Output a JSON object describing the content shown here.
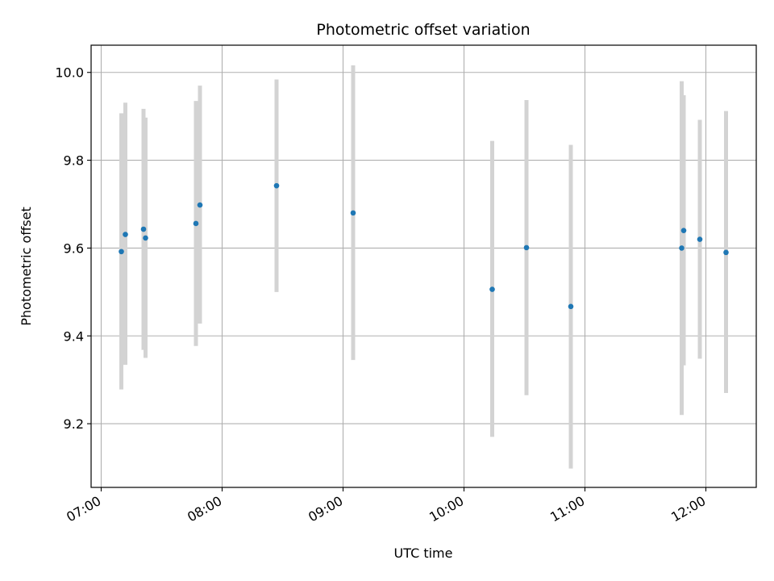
{
  "chart_data": {
    "type": "scatter",
    "title": "Photometric offset variation",
    "xlabel": "UTC time",
    "ylabel": "Photometric offset",
    "x_axis": {
      "kind": "time",
      "range": [
        "06:55",
        "12:25"
      ],
      "ticks": [
        "07:00",
        "08:00",
        "09:00",
        "10:00",
        "11:00",
        "12:00"
      ]
    },
    "y_axis": {
      "range": [
        9.055,
        10.062
      ],
      "ticks": [
        "9.2",
        "9.4",
        "9.6",
        "9.8",
        "10.0"
      ]
    },
    "grid": true,
    "colors": {
      "point": "#1f77b4",
      "errorbar": "#d3d3d3",
      "grid": "#b0b0b0"
    },
    "points": [
      {
        "time": "07:10",
        "value": 9.592,
        "lower": 9.278,
        "upper": 9.907
      },
      {
        "time": "07:12",
        "value": 9.631,
        "lower": 9.334,
        "upper": 9.931
      },
      {
        "time": "07:21",
        "value": 9.643,
        "lower": 9.368,
        "upper": 9.917
      },
      {
        "time": "07:22",
        "value": 9.623,
        "lower": 9.35,
        "upper": 9.897
      },
      {
        "time": "07:47",
        "value": 9.656,
        "lower": 9.377,
        "upper": 9.935
      },
      {
        "time": "07:49",
        "value": 9.698,
        "lower": 9.428,
        "upper": 9.97
      },
      {
        "time": "08:27",
        "value": 9.742,
        "lower": 9.5,
        "upper": 9.984
      },
      {
        "time": "09:05",
        "value": 9.68,
        "lower": 9.345,
        "upper": 10.016
      },
      {
        "time": "10:14",
        "value": 9.506,
        "lower": 9.17,
        "upper": 9.844
      },
      {
        "time": "10:31",
        "value": 9.601,
        "lower": 9.265,
        "upper": 9.937
      },
      {
        "time": "10:53",
        "value": 9.467,
        "lower": 9.098,
        "upper": 9.835
      },
      {
        "time": "11:48",
        "value": 9.6,
        "lower": 9.22,
        "upper": 9.98
      },
      {
        "time": "11:49",
        "value": 9.64,
        "lower": 9.333,
        "upper": 9.948
      },
      {
        "time": "11:57",
        "value": 9.62,
        "lower": 9.348,
        "upper": 9.892
      },
      {
        "time": "12:10",
        "value": 9.59,
        "lower": 9.27,
        "upper": 9.912
      }
    ]
  }
}
